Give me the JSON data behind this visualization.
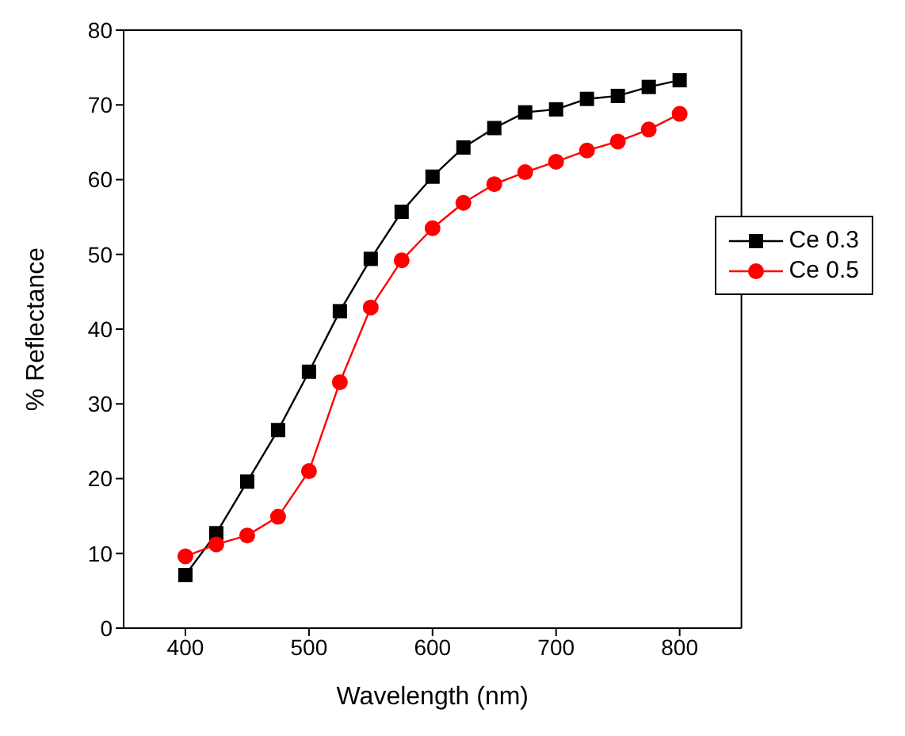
{
  "chart_data": {
    "type": "line",
    "xlabel": "Wavelength (nm)",
    "ylabel": "% Reflectance",
    "x": [
      400,
      425,
      450,
      475,
      500,
      525,
      550,
      575,
      600,
      625,
      650,
      675,
      700,
      725,
      750,
      775,
      800
    ],
    "xlim": [
      350,
      850
    ],
    "xticks": [
      400,
      500,
      600,
      700,
      800
    ],
    "ylim": [
      0,
      80
    ],
    "yticks": [
      0,
      10,
      20,
      30,
      40,
      50,
      60,
      70,
      80
    ],
    "grid": false,
    "legend": "top right",
    "line_style": "solid",
    "series": [
      {
        "name": "Ce 0.3",
        "color": "#000000",
        "marker": "square",
        "values": [
          7.1,
          12.7,
          19.6,
          26.5,
          34.3,
          42.4,
          49.4,
          55.7,
          60.4,
          64.3,
          66.9,
          69.0,
          69.4,
          70.8,
          71.2,
          72.4,
          73.3
        ]
      },
      {
        "name": "Ce 0.5",
        "color": "#ff0000",
        "marker": "circle",
        "values": [
          9.6,
          11.2,
          12.4,
          14.9,
          21.0,
          32.9,
          42.9,
          49.2,
          53.5,
          56.9,
          59.4,
          61.0,
          62.4,
          63.9,
          65.1,
          66.7,
          68.8
        ]
      }
    ]
  }
}
